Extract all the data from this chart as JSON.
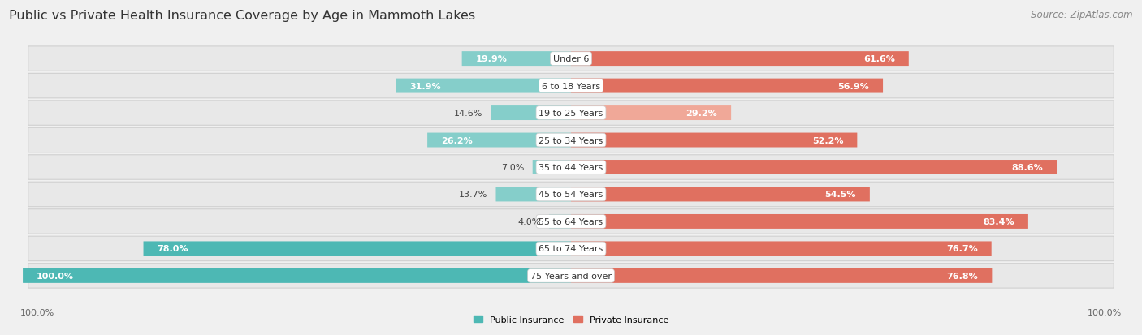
{
  "title": "Public vs Private Health Insurance Coverage by Age in Mammoth Lakes",
  "source": "Source: ZipAtlas.com",
  "categories": [
    "Under 6",
    "6 to 18 Years",
    "19 to 25 Years",
    "25 to 34 Years",
    "35 to 44 Years",
    "45 to 54 Years",
    "55 to 64 Years",
    "65 to 74 Years",
    "75 Years and over"
  ],
  "public_values": [
    19.9,
    31.9,
    14.6,
    26.2,
    7.0,
    13.7,
    4.0,
    78.0,
    100.0
  ],
  "private_values": [
    61.6,
    56.9,
    29.2,
    52.2,
    88.6,
    54.5,
    83.4,
    76.7,
    76.8
  ],
  "public_color_strong": "#4db8b4",
  "public_color_weak": "#85ceca",
  "private_color_strong": "#e07060",
  "private_color_weak": "#f0a898",
  "bg_color": "#f0f0f0",
  "row_bg_color": "#e8e8e8",
  "row_edge_color": "#d0d0d0",
  "axis_label_left": "100.0%",
  "axis_label_right": "100.0%",
  "legend_public": "Public Insurance",
  "legend_private": "Private Insurance",
  "title_fontsize": 11.5,
  "source_fontsize": 8.5,
  "label_fontsize": 8,
  "cat_fontsize": 8,
  "axis_fontsize": 8,
  "strong_threshold": 50.0
}
